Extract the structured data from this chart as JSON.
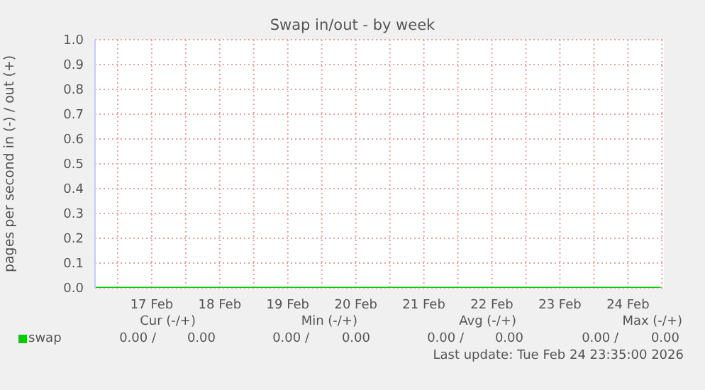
{
  "chart_data": {
    "type": "line",
    "title": "Swap in/out - by week",
    "ylabel": "pages per second in (-) / out (+)",
    "x": [
      "2026-02-16T16:00",
      "2026-02-17T12:00",
      "2026-02-18T12:00",
      "2026-02-19T12:00",
      "2026-02-20T12:00",
      "2026-02-21T12:00",
      "2026-02-22T12:00",
      "2026-02-23T12:00",
      "2026-02-24T12:00",
      "2026-02-24T23:35"
    ],
    "series": [
      {
        "name": "swap",
        "color": "#00cc00",
        "values": [
          0,
          0,
          0,
          0,
          0,
          0,
          0,
          0,
          0,
          0
        ]
      }
    ],
    "xlim": [
      "2026-02-16T16:00",
      "2026-02-25T00:40"
    ],
    "xticks": [
      {
        "value": "2026-02-17T00:00",
        "label": null
      },
      {
        "value": "2026-02-17T12:00",
        "label": "17 Feb"
      },
      {
        "value": "2026-02-18T00:00",
        "label": null
      },
      {
        "value": "2026-02-18T12:00",
        "label": "18 Feb"
      },
      {
        "value": "2026-02-19T00:00",
        "label": null
      },
      {
        "value": "2026-02-19T12:00",
        "label": "19 Feb"
      },
      {
        "value": "2026-02-20T00:00",
        "label": null
      },
      {
        "value": "2026-02-20T12:00",
        "label": "20 Feb"
      },
      {
        "value": "2026-02-21T00:00",
        "label": null
      },
      {
        "value": "2026-02-21T12:00",
        "label": "21 Feb"
      },
      {
        "value": "2026-02-22T00:00",
        "label": null
      },
      {
        "value": "2026-02-22T12:00",
        "label": "22 Feb"
      },
      {
        "value": "2026-02-23T00:00",
        "label": null
      },
      {
        "value": "2026-02-23T12:00",
        "label": "23 Feb"
      },
      {
        "value": "2026-02-24T00:00",
        "label": null
      },
      {
        "value": "2026-02-24T12:00",
        "label": "24 Feb"
      },
      {
        "value": "2026-02-25T00:00",
        "label": null
      }
    ],
    "ylim": [
      0,
      1
    ],
    "yticks": [
      {
        "value": 0,
        "label": "0.0"
      },
      {
        "value": 0.1,
        "label": "0.1"
      },
      {
        "value": 0.2,
        "label": "0.2"
      },
      {
        "value": 0.3,
        "label": "0.3"
      },
      {
        "value": 0.4,
        "label": "0.4"
      },
      {
        "value": 0.5,
        "label": "0.5"
      },
      {
        "value": 0.6,
        "label": "0.6"
      },
      {
        "value": 0.7,
        "label": "0.7"
      },
      {
        "value": 0.8,
        "label": "0.8"
      },
      {
        "value": 0.9,
        "label": "0.9"
      },
      {
        "value": 1,
        "label": "1.0"
      }
    ],
    "grid": true,
    "legend": "bottom left",
    "marker": "none",
    "line_style": "solid",
    "annotations": [
      "Cur (-/+)",
      "Min (-/+)",
      "Avg (-/+)",
      "Max (-/+)",
      "0.00 /",
      "0.00",
      "0.00 /",
      "0.00",
      "0.00 /",
      "0.00",
      "0.00 /",
      "0.00",
      "Last update: Tue Feb 24 23:35:00 2026"
    ]
  }
}
